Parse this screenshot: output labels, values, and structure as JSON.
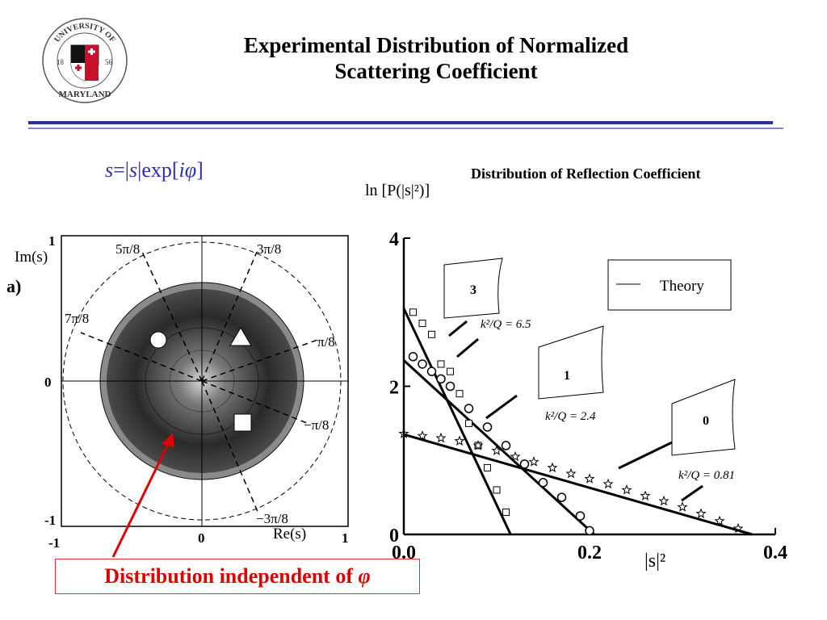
{
  "slide": {
    "title_line1": "Experimental Distribution of Normalized",
    "title_line2": "Scattering Coefficient",
    "formula": {
      "s": "s",
      "eq": "=|",
      "s2": "s",
      "exp": "|exp[",
      "i": "i",
      "phi": "φ",
      "close": "]"
    },
    "caption": "Distribution independent of ",
    "caption_symbol": "φ",
    "colors": {
      "title_rule": "#2b2f9c",
      "formula": "#2b2fb0",
      "caption": "#e00000"
    }
  },
  "logo": {
    "top_text": "UNIVERSITY OF",
    "bottom_text": "MARYLAND",
    "year_left": "18",
    "year_right": "56"
  },
  "left_plot": {
    "panel_label": "a)",
    "y_axis_label": "Im(s)",
    "x_axis_label": "Re(s)",
    "y_tick_top": "1",
    "y_tick_mid": "0",
    "y_tick_bottom": "-1",
    "x_tick_left": "-1",
    "x_tick_mid": "0",
    "x_tick_right": "1",
    "angle_labels": [
      "5π/8",
      "3π/8",
      "7π/8",
      "π/8",
      "−π/8",
      "−3π/8"
    ],
    "markers": [
      "circle",
      "triangle",
      "square"
    ]
  },
  "right_plot": {
    "subheading": "Distribution of Reflection Coefficient",
    "y_label": "ln [P(|s|²)]",
    "x_label": "|s|²",
    "legend_label": "Theory",
    "annotations": [
      "k²/Q = 6.5",
      "k²/Q = 2.4",
      "k²/Q = 0.81"
    ],
    "inset_labels": [
      "3",
      "1",
      "0"
    ]
  },
  "chart_data": {
    "type": "scatter",
    "xlim": [
      0.0,
      0.4
    ],
    "ylim": [
      0,
      4
    ],
    "xticks": [
      "0.0",
      "0.2",
      "0.4"
    ],
    "yticks": [
      "0",
      "2",
      "4"
    ],
    "grid": false,
    "legend": "top-right",
    "series": [
      {
        "marker": "square",
        "theory": {
          "x": [
            0,
            0.115
          ],
          "y": [
            3.05,
            0
          ]
        },
        "points": {
          "x": [
            0.01,
            0.02,
            0.03,
            0.04,
            0.05,
            0.06,
            0.07,
            0.08,
            0.09,
            0.1,
            0.11
          ],
          "y": [
            3.0,
            2.85,
            2.7,
            2.3,
            2.2,
            1.9,
            1.5,
            1.2,
            0.9,
            0.6,
            0.3
          ]
        }
      },
      {
        "marker": "circle",
        "theory": {
          "x": [
            0,
            0.205
          ],
          "y": [
            2.35,
            0
          ]
        },
        "points": {
          "x": [
            0.01,
            0.02,
            0.03,
            0.04,
            0.05,
            0.07,
            0.09,
            0.11,
            0.13,
            0.15,
            0.17,
            0.19,
            0.2
          ],
          "y": [
            2.4,
            2.3,
            2.2,
            2.1,
            2.0,
            1.7,
            1.45,
            1.2,
            0.95,
            0.7,
            0.5,
            0.25,
            0.05
          ]
        }
      },
      {
        "marker": "star",
        "theory": {
          "x": [
            0,
            0.375
          ],
          "y": [
            1.35,
            0
          ]
        },
        "points": {
          "x": [
            0.0,
            0.02,
            0.04,
            0.06,
            0.08,
            0.1,
            0.12,
            0.14,
            0.16,
            0.18,
            0.2,
            0.22,
            0.24,
            0.26,
            0.28,
            0.3,
            0.32,
            0.34,
            0.36
          ],
          "y": [
            1.36,
            1.33,
            1.3,
            1.26,
            1.2,
            1.13,
            1.05,
            0.98,
            0.9,
            0.82,
            0.75,
            0.68,
            0.6,
            0.52,
            0.45,
            0.37,
            0.28,
            0.18,
            0.08
          ]
        }
      }
    ]
  }
}
